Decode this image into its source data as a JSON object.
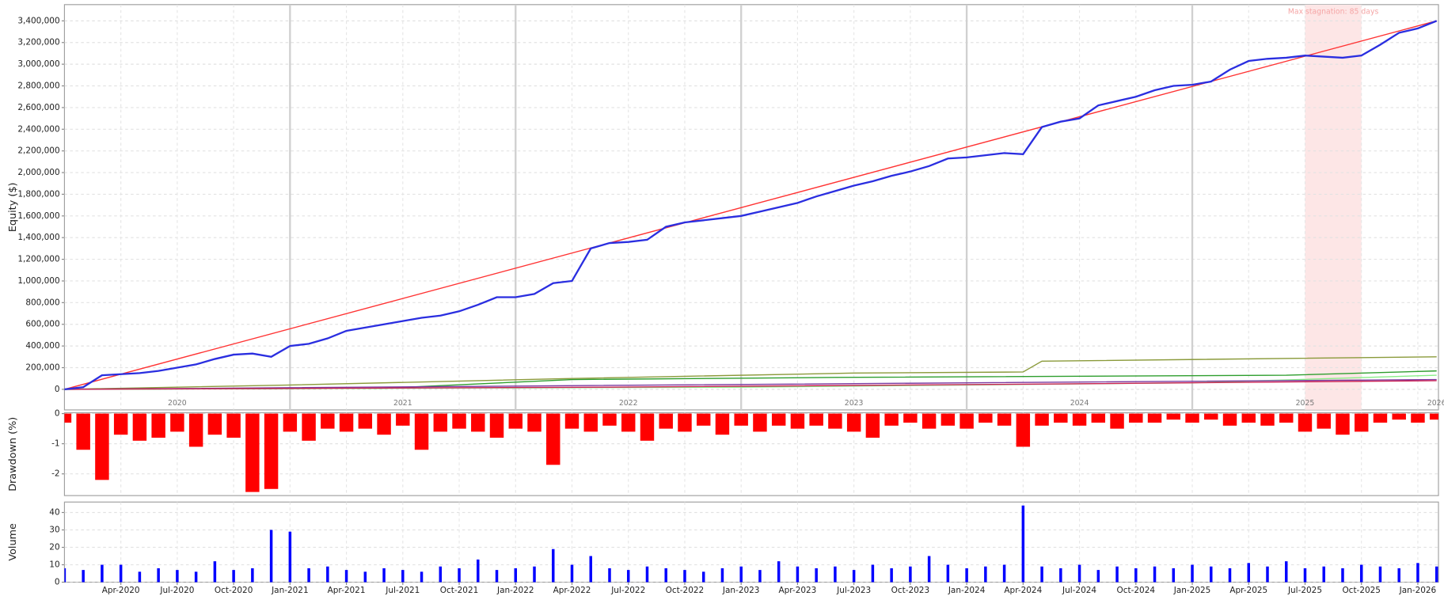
{
  "chart_data": [
    {
      "type": "line",
      "y_label": "Equity ($)",
      "annotation": "Max stagnation: 85 days",
      "stagnation": [
        "2025-07",
        "2025-10"
      ],
      "stagnation_color": "#fde6e6",
      "x": [
        "2020-01",
        "2020-02",
        "2020-03",
        "2020-04",
        "2020-05",
        "2020-06",
        "2020-07",
        "2020-08",
        "2020-09",
        "2020-10",
        "2020-11",
        "2020-12",
        "2021-01",
        "2021-02",
        "2021-03",
        "2021-04",
        "2021-05",
        "2021-06",
        "2021-07",
        "2021-08",
        "2021-09",
        "2021-10",
        "2021-11",
        "2021-12",
        "2022-01",
        "2022-02",
        "2022-03",
        "2022-04",
        "2022-05",
        "2022-06",
        "2022-07",
        "2022-08",
        "2022-09",
        "2022-10",
        "2022-11",
        "2022-12",
        "2023-01",
        "2023-02",
        "2023-03",
        "2023-04",
        "2023-05",
        "2023-06",
        "2023-07",
        "2023-08",
        "2023-09",
        "2023-10",
        "2023-11",
        "2023-12",
        "2024-01",
        "2024-02",
        "2024-03",
        "2024-04",
        "2024-05",
        "2024-06",
        "2024-07",
        "2024-08",
        "2024-09",
        "2024-10",
        "2024-11",
        "2024-12",
        "2025-01",
        "2025-02",
        "2025-03",
        "2025-04",
        "2025-05",
        "2025-06",
        "2025-07",
        "2025-08",
        "2025-09",
        "2025-10",
        "2025-11",
        "2025-12",
        "2026-01",
        "2026-02"
      ],
      "xlim": [
        "2020-01",
        "2026-02"
      ],
      "xticks": [
        {
          "value": "2020-07",
          "label": "2020"
        },
        {
          "value": "2021-07",
          "label": "2021"
        },
        {
          "value": "2022-07",
          "label": "2022"
        },
        {
          "value": "2023-07",
          "label": "2023"
        },
        {
          "value": "2024-07",
          "label": "2024"
        },
        {
          "value": "2025-07",
          "label": "2025"
        },
        {
          "value": "2026-02",
          "label": "2026"
        }
      ],
      "xgrid": [
        "2021-01",
        "2022-01",
        "2023-01",
        "2024-01",
        "2025-01"
      ],
      "ylim": [
        -190000,
        3550000
      ],
      "yticks": [
        0,
        {
          "value": 200000,
          "label": "200,000"
        },
        {
          "value": 400000,
          "label": "400,000"
        },
        {
          "value": 600000,
          "label": "600,000"
        },
        {
          "value": 800000,
          "label": "800,000"
        },
        {
          "value": 1000000,
          "label": "1,000,000"
        },
        {
          "value": 1200000,
          "label": "1,200,000"
        },
        {
          "value": 1400000,
          "label": "1,400,000"
        },
        {
          "value": 1600000,
          "label": "1,600,000"
        },
        {
          "value": 1800000,
          "label": "1,800,000"
        },
        {
          "value": 2000000,
          "label": "2,000,000"
        },
        {
          "value": 2200000,
          "label": "2,200,000"
        },
        {
          "value": 2400000,
          "label": "2,400,000"
        },
        {
          "value": 2600000,
          "label": "2,600,000"
        },
        {
          "value": 2800000,
          "label": "2,800,000"
        },
        {
          "value": 3000000,
          "label": "3,000,000"
        },
        {
          "value": 3200000,
          "label": "3,200,000"
        },
        {
          "value": 3400000,
          "label": "3,400,000"
        }
      ],
      "grid": true,
      "series": [
        {
          "color": "#8a9a3a",
          "x": [
            "2020-01",
            "2021-01",
            "2022-04",
            "2023-07",
            "2024-04",
            "2024-05",
            "2026-02"
          ],
          "values": [
            0,
            40000,
            100000,
            150000,
            160000,
            260000,
            300000
          ]
        },
        {
          "color": "#2e9e2e",
          "x": [
            "2020-01",
            "2021-06",
            "2022-04",
            "2023-06",
            "2025-06",
            "2026-02"
          ],
          "values": [
            0,
            10000,
            90000,
            110000,
            130000,
            170000
          ]
        },
        {
          "color": "#88ee88",
          "x": [
            "2020-01",
            "2023-01",
            "2025-01",
            "2026-02"
          ],
          "values": [
            0,
            20000,
            60000,
            130000
          ]
        },
        {
          "color": "#7a3aa0",
          "x": [
            "2020-01",
            "2022-01",
            "2024-01",
            "2026-02"
          ],
          "values": [
            0,
            30000,
            60000,
            90000
          ]
        },
        {
          "color": "#cc2255",
          "x": [
            "2020-01",
            "2022-06",
            "2024-06",
            "2026-02"
          ],
          "values": [
            0,
            20000,
            50000,
            80000
          ]
        },
        {
          "color": "#ff3333",
          "x": [
            "2020-01",
            "2026-02"
          ],
          "values": [
            0,
            3400000
          ]
        },
        {
          "color": "#2a2ee0",
          "values": [
            0,
            20000,
            130000,
            140000,
            150000,
            170000,
            200000,
            230000,
            280000,
            320000,
            330000,
            300000,
            400000,
            420000,
            470000,
            540000,
            570000,
            600000,
            630000,
            660000,
            680000,
            720000,
            780000,
            850000,
            850000,
            880000,
            980000,
            1000000,
            1300000,
            1350000,
            1360000,
            1380000,
            1500000,
            1540000,
            1560000,
            1580000,
            1600000,
            1640000,
            1680000,
            1720000,
            1780000,
            1830000,
            1880000,
            1920000,
            1970000,
            2010000,
            2060000,
            2130000,
            2140000,
            2160000,
            2180000,
            2170000,
            2420000,
            2470000,
            2500000,
            2620000,
            2660000,
            2700000,
            2760000,
            2800000,
            2810000,
            2840000,
            2950000,
            3030000,
            3050000,
            3060000,
            3080000,
            3070000,
            3060000,
            3080000,
            3180000,
            3290000,
            3330000,
            3400000
          ]
        }
      ]
    },
    {
      "type": "bar",
      "y_label": "Drawdown (%)",
      "color": "#ff0000",
      "x": [
        "2020-01",
        "2020-02",
        "2020-03",
        "2020-04",
        "2020-05",
        "2020-06",
        "2020-07",
        "2020-08",
        "2020-09",
        "2020-10",
        "2020-11",
        "2020-12",
        "2021-01",
        "2021-02",
        "2021-03",
        "2021-04",
        "2021-05",
        "2021-06",
        "2021-07",
        "2021-08",
        "2021-09",
        "2021-10",
        "2021-11",
        "2021-12",
        "2022-01",
        "2022-02",
        "2022-03",
        "2022-04",
        "2022-05",
        "2022-06",
        "2022-07",
        "2022-08",
        "2022-09",
        "2022-10",
        "2022-11",
        "2022-12",
        "2023-01",
        "2023-02",
        "2023-03",
        "2023-04",
        "2023-05",
        "2023-06",
        "2023-07",
        "2023-08",
        "2023-09",
        "2023-10",
        "2023-11",
        "2023-12",
        "2024-01",
        "2024-02",
        "2024-03",
        "2024-04",
        "2024-05",
        "2024-06",
        "2024-07",
        "2024-08",
        "2024-09",
        "2024-10",
        "2024-11",
        "2024-12",
        "2025-01",
        "2025-02",
        "2025-03",
        "2025-04",
        "2025-05",
        "2025-06",
        "2025-07",
        "2025-08",
        "2025-09",
        "2025-10",
        "2025-11",
        "2025-12",
        "2026-01",
        "2026-02"
      ],
      "values": [
        -0.3,
        -1.2,
        -2.2,
        -0.7,
        -0.9,
        -0.8,
        -0.6,
        -1.1,
        -0.7,
        -0.8,
        -2.6,
        -2.5,
        -0.6,
        -0.9,
        -0.5,
        -0.6,
        -0.5,
        -0.7,
        -0.4,
        -1.2,
        -0.6,
        -0.5,
        -0.6,
        -0.8,
        -0.5,
        -0.6,
        -1.7,
        -0.5,
        -0.6,
        -0.4,
        -0.6,
        -0.9,
        -0.5,
        -0.6,
        -0.4,
        -0.7,
        -0.4,
        -0.6,
        -0.4,
        -0.5,
        -0.4,
        -0.5,
        -0.6,
        -0.8,
        -0.4,
        -0.3,
        -0.5,
        -0.4,
        -0.5,
        -0.3,
        -0.4,
        -1.1,
        -0.4,
        -0.3,
        -0.4,
        -0.3,
        -0.5,
        -0.3,
        -0.3,
        -0.2,
        -0.3,
        -0.2,
        -0.4,
        -0.3,
        -0.4,
        -0.3,
        -0.6,
        -0.5,
        -0.7,
        -0.6,
        -0.3,
        -0.2,
        -0.3,
        -0.2
      ],
      "xlim": [
        "2020-01",
        "2026-02"
      ],
      "ylim": [
        -2.72,
        0.03
      ],
      "yticks": [
        0,
        -1,
        -2
      ],
      "grid": true
    },
    {
      "type": "bar",
      "y_label": "Volume",
      "color": "#0000ff",
      "x": [
        "2020-01",
        "2020-02",
        "2020-03",
        "2020-04",
        "2020-05",
        "2020-06",
        "2020-07",
        "2020-08",
        "2020-09",
        "2020-10",
        "2020-11",
        "2020-12",
        "2021-01",
        "2021-02",
        "2021-03",
        "2021-04",
        "2021-05",
        "2021-06",
        "2021-07",
        "2021-08",
        "2021-09",
        "2021-10",
        "2021-11",
        "2021-12",
        "2022-01",
        "2022-02",
        "2022-03",
        "2022-04",
        "2022-05",
        "2022-06",
        "2022-07",
        "2022-08",
        "2022-09",
        "2022-10",
        "2022-11",
        "2022-12",
        "2023-01",
        "2023-02",
        "2023-03",
        "2023-04",
        "2023-05",
        "2023-06",
        "2023-07",
        "2023-08",
        "2023-09",
        "2023-10",
        "2023-11",
        "2023-12",
        "2024-01",
        "2024-02",
        "2024-03",
        "2024-04",
        "2024-05",
        "2024-06",
        "2024-07",
        "2024-08",
        "2024-09",
        "2024-10",
        "2024-11",
        "2024-12",
        "2025-01",
        "2025-02",
        "2025-03",
        "2025-04",
        "2025-05",
        "2025-06",
        "2025-07",
        "2025-08",
        "2025-09",
        "2025-10",
        "2025-11",
        "2025-12",
        "2026-01",
        "2026-02"
      ],
      "values": [
        8,
        7,
        10,
        10,
        6,
        8,
        7,
        6,
        12,
        7,
        8,
        30,
        29,
        8,
        9,
        7,
        6,
        8,
        7,
        6,
        9,
        8,
        13,
        7,
        8,
        9,
        19,
        10,
        15,
        8,
        7,
        9,
        8,
        7,
        6,
        8,
        9,
        7,
        12,
        9,
        8,
        9,
        7,
        10,
        8,
        9,
        15,
        10,
        8,
        9,
        10,
        44,
        9,
        8,
        10,
        7,
        9,
        8,
        9,
        8,
        10,
        9,
        8,
        11,
        9,
        12,
        8,
        9,
        8,
        10,
        9,
        8,
        11,
        9
      ],
      "xlim": [
        "2020-01",
        "2026-02"
      ],
      "ylim": [
        0,
        46
      ],
      "yticks": [
        0,
        10,
        20,
        30,
        40
      ],
      "grid": true,
      "xticks": [
        {
          "value": "2020-04",
          "label": "Apr-2020"
        },
        {
          "value": "2020-07",
          "label": "Jul-2020"
        },
        {
          "value": "2020-10",
          "label": "Oct-2020"
        },
        {
          "value": "2021-01",
          "label": "Jan-2021"
        },
        {
          "value": "2021-04",
          "label": "Apr-2021"
        },
        {
          "value": "2021-07",
          "label": "Jul-2021"
        },
        {
          "value": "2021-10",
          "label": "Oct-2021"
        },
        {
          "value": "2022-01",
          "label": "Jan-2022"
        },
        {
          "value": "2022-04",
          "label": "Apr-2022"
        },
        {
          "value": "2022-07",
          "label": "Jul-2022"
        },
        {
          "value": "2022-10",
          "label": "Oct-2022"
        },
        {
          "value": "2023-01",
          "label": "Jan-2023"
        },
        {
          "value": "2023-04",
          "label": "Apr-2023"
        },
        {
          "value": "2023-07",
          "label": "Jul-2023"
        },
        {
          "value": "2023-10",
          "label": "Oct-2023"
        },
        {
          "value": "2024-01",
          "label": "Jan-2024"
        },
        {
          "value": "2024-04",
          "label": "Apr-2024"
        },
        {
          "value": "2024-07",
          "label": "Jul-2024"
        },
        {
          "value": "2024-10",
          "label": "Oct-2024"
        },
        {
          "value": "2025-01",
          "label": "Jan-2025"
        },
        {
          "value": "2025-04",
          "label": "Apr-2025"
        },
        {
          "value": "2025-07",
          "label": "Jul-2025"
        },
        {
          "value": "2025-10",
          "label": "Oct-2025"
        },
        {
          "value": "2026-01",
          "label": "Jan-2026"
        }
      ]
    }
  ]
}
